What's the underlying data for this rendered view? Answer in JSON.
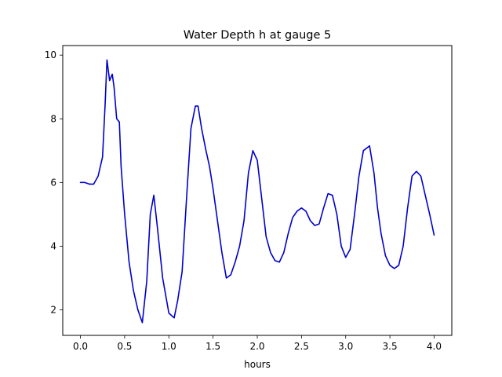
{
  "chart_data": {
    "type": "line",
    "title": "Water Depth h at gauge 5",
    "xlabel": "hours",
    "ylabel": "",
    "xlim": [
      -0.2,
      4.2
    ],
    "ylim": [
      1.2,
      10.3
    ],
    "xticks": [
      0.0,
      0.5,
      1.0,
      1.5,
      2.0,
      2.5,
      3.0,
      3.5,
      4.0
    ],
    "xtick_labels": [
      "0.0",
      "0.5",
      "1.0",
      "1.5",
      "2.0",
      "2.5",
      "3.0",
      "3.5",
      "4.0"
    ],
    "yticks": [
      2,
      4,
      6,
      8,
      10
    ],
    "ytick_labels": [
      "2",
      "4",
      "6",
      "8",
      "10"
    ],
    "grid": false,
    "series": [
      {
        "color": "#0000cc",
        "x": [
          0.0,
          0.05,
          0.1,
          0.15,
          0.2,
          0.25,
          0.28,
          0.3,
          0.33,
          0.36,
          0.38,
          0.41,
          0.44,
          0.46,
          0.5,
          0.55,
          0.6,
          0.65,
          0.7,
          0.75,
          0.79,
          0.83,
          0.87,
          0.93,
          1.0,
          1.06,
          1.1,
          1.15,
          1.2,
          1.25,
          1.3,
          1.33,
          1.37,
          1.42,
          1.46,
          1.5,
          1.55,
          1.6,
          1.65,
          1.7,
          1.75,
          1.8,
          1.85,
          1.9,
          1.95,
          2.0,
          2.05,
          2.1,
          2.15,
          2.2,
          2.25,
          2.3,
          2.35,
          2.4,
          2.45,
          2.5,
          2.55,
          2.6,
          2.65,
          2.7,
          2.75,
          2.8,
          2.85,
          2.9,
          2.95,
          3.0,
          3.05,
          3.1,
          3.15,
          3.2,
          3.27,
          3.32,
          3.36,
          3.4,
          3.45,
          3.5,
          3.55,
          3.6,
          3.65,
          3.7,
          3.75,
          3.8,
          3.85,
          3.9,
          3.95,
          4.0
        ],
        "values": [
          6.0,
          6.0,
          5.95,
          5.95,
          6.2,
          6.8,
          8.5,
          9.85,
          9.2,
          9.4,
          9.0,
          8.0,
          7.9,
          6.5,
          5.0,
          3.5,
          2.6,
          2.0,
          1.6,
          2.9,
          5.0,
          5.6,
          4.6,
          3.0,
          1.9,
          1.75,
          2.3,
          3.2,
          5.5,
          7.7,
          8.4,
          8.4,
          7.7,
          7.0,
          6.5,
          5.8,
          4.8,
          3.8,
          3.0,
          3.1,
          3.5,
          4.0,
          4.8,
          6.3,
          7.0,
          6.7,
          5.5,
          4.3,
          3.8,
          3.55,
          3.5,
          3.8,
          4.4,
          4.9,
          5.1,
          5.2,
          5.1,
          4.8,
          4.65,
          4.7,
          5.2,
          5.65,
          5.6,
          5.0,
          4.0,
          3.65,
          3.9,
          5.0,
          6.2,
          7.0,
          7.15,
          6.3,
          5.2,
          4.4,
          3.7,
          3.4,
          3.3,
          3.4,
          4.0,
          5.2,
          6.2,
          6.35,
          6.2,
          5.6,
          5.0,
          4.35
        ]
      }
    ]
  }
}
